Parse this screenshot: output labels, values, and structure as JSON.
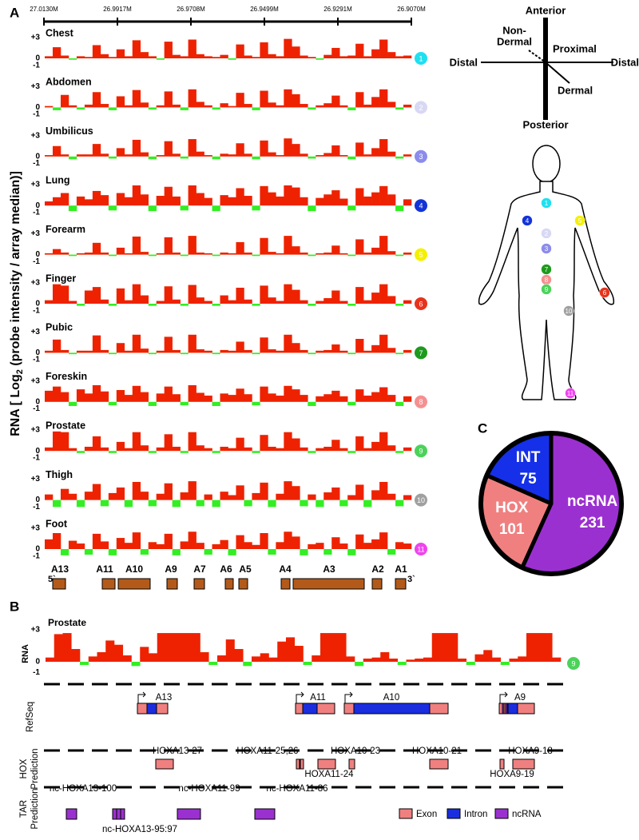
{
  "panel_labels": [
    "A",
    "B",
    "C"
  ],
  "panel_a": {
    "y_axis_label": {
      "prefix": "RNA [ Log",
      "sub": "2",
      "suffix": " (probe intensity / array median)]"
    },
    "coordinates": [
      "27.0130M",
      "26.9917M",
      "26.9708M",
      "26.9499M",
      "26.9291M",
      "26.9070M"
    ],
    "yticks": [
      {
        "value": 3,
        "label": "+3"
      },
      0,
      -1
    ],
    "tracks": [
      {
        "name": "Chest",
        "number": "1",
        "color": "#1ee0f0",
        "values": [
          0.3,
          1.6,
          0.4,
          -0.2,
          0.3,
          0.2,
          1.9,
          0.6,
          0.2,
          1.3,
          0.3,
          2.6,
          0.9,
          0.3,
          -0.2,
          2.4,
          0.5,
          0.3,
          2.7,
          0.6,
          0.3,
          0.2,
          0.5,
          -0.2,
          2.0,
          0.4,
          0.2,
          2.3,
          0.6,
          0.3,
          2.8,
          1.7,
          0.4,
          0.2,
          -0.2,
          0.5,
          1.5,
          0.3,
          0.4,
          2.1,
          0.3,
          1.3,
          2.7,
          0.9,
          0.3,
          0.4
        ]
      },
      {
        "name": "Abdomen",
        "number": "2",
        "color": "#d8d8f4",
        "values": [
          0.2,
          -0.4,
          1.8,
          0.3,
          -0.3,
          0.4,
          2.2,
          0.5,
          -0.4,
          1.6,
          0.3,
          2.5,
          0.7,
          -0.3,
          0.3,
          2.3,
          0.4,
          -0.4,
          2.6,
          0.8,
          0.3,
          -0.3,
          0.6,
          0.2,
          2.1,
          0.5,
          -0.4,
          2.4,
          0.7,
          0.3,
          2.6,
          1.9,
          0.5,
          -0.3,
          0.3,
          0.6,
          1.7,
          0.3,
          -0.4,
          2.2,
          0.4,
          1.5,
          2.6,
          0.8,
          -0.3,
          0.4
        ]
      },
      {
        "name": "Umbilicus",
        "number": "3",
        "color": "#8c8cec",
        "values": [
          0.2,
          1.5,
          0.3,
          -0.4,
          0.3,
          0.3,
          1.8,
          0.4,
          -0.3,
          1.2,
          0.3,
          2.4,
          0.6,
          -0.4,
          0.2,
          2.2,
          0.4,
          -0.3,
          2.5,
          0.7,
          0.2,
          -0.4,
          0.4,
          0.3,
          1.9,
          0.4,
          -0.4,
          2.3,
          0.6,
          0.2,
          2.6,
          1.8,
          0.4,
          -0.3,
          0.2,
          0.5,
          1.6,
          0.2,
          -0.4,
          2.0,
          0.3,
          1.2,
          2.5,
          0.7,
          -0.3,
          0.3
        ]
      },
      {
        "name": "Lung",
        "number": "4",
        "color": "#1433d8",
        "values": [
          0.6,
          1.2,
          1.8,
          -0.8,
          1.3,
          0.9,
          2.1,
          1.5,
          -0.7,
          1.8,
          1.2,
          2.9,
          1.6,
          -0.8,
          1.4,
          2.7,
          1.3,
          -0.7,
          2.9,
          1.8,
          1.1,
          -0.8,
          1.5,
          1.2,
          2.5,
          1.4,
          -0.7,
          2.8,
          1.9,
          1.3,
          2.9,
          2.6,
          1.2,
          -0.8,
          1.1,
          1.6,
          2.2,
          1.0,
          -0.7,
          2.5,
          1.3,
          1.9,
          2.8,
          1.6,
          -0.8,
          0.9
        ]
      },
      {
        "name": "Forearm",
        "number": "5",
        "color": "#f5f000",
        "values": [
          0.2,
          0.8,
          0.3,
          -0.2,
          0.2,
          0.3,
          1.7,
          0.3,
          -0.2,
          1.0,
          0.2,
          2.6,
          0.4,
          -0.2,
          0.2,
          2.5,
          0.3,
          -0.2,
          2.7,
          0.3,
          0.2,
          -0.2,
          0.3,
          0.2,
          1.8,
          0.3,
          -0.2,
          2.4,
          0.4,
          0.2,
          2.7,
          1.2,
          0.3,
          -0.2,
          0.2,
          0.3,
          1.3,
          0.2,
          -0.2,
          2.2,
          0.3,
          1.0,
          2.7,
          0.5,
          -0.2,
          0.3
        ]
      },
      {
        "name": "Finger",
        "number": "6",
        "color": "#e8331c",
        "values": [
          0.5,
          2.8,
          2.6,
          0.4,
          -0.3,
          1.9,
          2.4,
          0.6,
          -0.3,
          2.2,
          0.5,
          2.8,
          1.2,
          -0.3,
          0.4,
          2.5,
          0.6,
          -0.3,
          2.7,
          0.9,
          0.4,
          -0.3,
          1.2,
          0.5,
          2.3,
          0.6,
          -0.3,
          2.6,
          0.9,
          0.4,
          2.8,
          2.0,
          0.5,
          -0.3,
          0.4,
          0.8,
          1.9,
          0.4,
          -0.3,
          2.4,
          0.5,
          1.6,
          2.8,
          1.1,
          -0.3,
          0.5
        ]
      },
      {
        "name": "Pubic",
        "number": "7",
        "color": "#1e9a1e",
        "values": [
          0.3,
          1.9,
          0.4,
          -0.2,
          0.3,
          0.3,
          2.5,
          0.4,
          -0.2,
          1.4,
          0.3,
          2.6,
          0.6,
          -0.2,
          0.3,
          2.3,
          0.4,
          -0.2,
          2.6,
          0.5,
          0.3,
          -0.2,
          0.4,
          0.3,
          1.6,
          0.4,
          -0.2,
          2.2,
          0.5,
          0.3,
          2.6,
          1.4,
          0.4,
          -0.2,
          0.3,
          0.4,
          1.2,
          0.3,
          -0.2,
          2.0,
          0.3,
          1.1,
          2.6,
          0.7,
          -0.2,
          0.4
        ]
      },
      {
        "name": "Foreskin",
        "number": "8",
        "color": "#f59090",
        "values": [
          1.6,
          2.2,
          1.4,
          -0.6,
          1.8,
          1.2,
          2.4,
          1.5,
          -0.5,
          1.7,
          1.0,
          2.3,
          1.4,
          -0.6,
          1.2,
          2.2,
          1.1,
          -0.5,
          2.4,
          1.3,
          0.9,
          -0.6,
          1.2,
          1.0,
          1.9,
          1.1,
          -0.5,
          2.2,
          1.2,
          0.9,
          2.3,
          1.8,
          1.0,
          -0.6,
          0.8,
          1.1,
          1.6,
          0.8,
          -0.5,
          1.8,
          0.9,
          1.4,
          2.1,
          1.0,
          -0.6,
          0.8
        ]
      },
      {
        "name": "Prostate",
        "number": "9",
        "color": "#4cd25a",
        "values": [
          0.5,
          2.8,
          2.7,
          0.4,
          -0.3,
          0.6,
          2.1,
          0.5,
          -0.3,
          1.3,
          0.4,
          2.7,
          0.8,
          -0.3,
          0.5,
          2.4,
          0.6,
          -0.3,
          2.7,
          0.8,
          0.4,
          -0.3,
          0.6,
          0.4,
          1.9,
          0.5,
          -0.3,
          2.3,
          0.6,
          0.4,
          2.7,
          1.8,
          0.5,
          -0.3,
          0.4,
          0.6,
          1.6,
          0.4,
          -0.3,
          2.1,
          0.4,
          1.3,
          2.7,
          0.8,
          -0.3,
          0.5
        ]
      },
      {
        "name": "Thigh",
        "number": "10",
        "color": "#a0a0a0",
        "values": [
          0.8,
          -1.0,
          1.6,
          0.9,
          -1.0,
          1.2,
          2.3,
          -0.9,
          1.0,
          1.8,
          -1.0,
          2.6,
          1.2,
          -0.9,
          0.9,
          2.4,
          -1.0,
          1.1,
          2.7,
          -0.9,
          0.8,
          -1.0,
          1.2,
          0.7,
          2.1,
          -0.9,
          1.0,
          2.5,
          -1.0,
          0.9,
          2.7,
          2.0,
          -0.9,
          0.8,
          -1.0,
          1.1,
          1.8,
          -0.9,
          0.7,
          2.2,
          -1.0,
          1.4,
          2.6,
          0.9,
          -0.9,
          0.7
        ]
      },
      {
        "name": "Foot",
        "number": "11",
        "color": "#ee44ee",
        "values": [
          1.4,
          2.3,
          -0.9,
          1.2,
          0.8,
          -0.8,
          2.2,
          1.1,
          -0.9,
          1.6,
          0.9,
          2.4,
          -0.8,
          1.0,
          0.7,
          2.2,
          -0.9,
          1.1,
          2.5,
          0.9,
          -0.8,
          0.7,
          1.3,
          -0.9,
          2.0,
          1.0,
          0.6,
          2.3,
          -0.8,
          1.0,
          2.5,
          1.8,
          -0.9,
          0.7,
          0.9,
          -0.8,
          1.7,
          0.8,
          -0.9,
          2.1,
          0.9,
          1.4,
          2.4,
          -0.8,
          1.0,
          0.8
        ]
      }
    ],
    "genes": [
      "A13",
      "A11",
      "A10",
      "A9",
      "A7",
      "A6",
      "A5",
      "A4",
      "A3",
      "A2",
      "A1"
    ],
    "five_prime": "5`",
    "three_prime": "3`"
  },
  "orientation": {
    "anterior": "Anterior",
    "posterior": "Posterior",
    "distal_left": "Distal",
    "distal_right": "Distal",
    "proximal": "Proximal",
    "dermal": "Dermal",
    "non_dermal": [
      "Non-",
      "Dermal"
    ]
  },
  "panel_c": {
    "type": "pie",
    "slices": [
      {
        "name": "ncRNA",
        "value": 231,
        "color": "#9b30d0"
      },
      {
        "name": "HOX",
        "value": 101,
        "color": "#f08080"
      },
      {
        "name": "INT",
        "value": 75,
        "color": "#1530e8"
      }
    ]
  },
  "panel_b": {
    "track_name": "Prostate",
    "axis_label": "RNA",
    "yticks": [
      {
        "value": 3,
        "label": "+3"
      },
      0,
      -1
    ],
    "number": "9",
    "color": "#4cd25a",
    "values": [
      0.4,
      2.6,
      2.7,
      1.2,
      -0.3,
      0.5,
      0.9,
      2.0,
      1.6,
      0.6,
      -0.4,
      1.4,
      0.8,
      2.7,
      2.7,
      2.7,
      2.7,
      2.7,
      0.9,
      -0.3,
      0.6,
      2.1,
      1.2,
      -0.4,
      0.5,
      0.8,
      0.4,
      1.9,
      2.3,
      1.5,
      -0.3,
      0.6,
      2.7,
      2.7,
      2.7,
      0.5,
      -0.4,
      0.3,
      0.4,
      0.9,
      0.3,
      -0.3,
      0.2,
      0.3,
      0.4,
      2.7,
      2.7,
      2.7,
      0.3,
      -0.3,
      0.7,
      1.1,
      0.4,
      -0.3,
      0.3,
      0.5,
      2.7,
      2.7,
      2.7,
      0.4
    ],
    "refseq_label": "RefSeq",
    "genes": [
      "A13",
      "A11",
      "A10",
      "A9"
    ],
    "hox_label": [
      "HOX",
      "Prediction"
    ],
    "hox_predictions": [
      "HOXA13-27",
      "HOXA11-25,26",
      "HOXA11-24",
      "HOXA10-23",
      "HOXA10-21",
      "HOXA9-18",
      "HOXA9-19"
    ],
    "tar_label": [
      "TAR",
      "Prediction"
    ],
    "tar_predictions": [
      "nc-HOXA13-100",
      "nc-HOXA13-95:97",
      "nc-HOXA11-93",
      "nc-HOXA11-86"
    ],
    "legend": [
      {
        "name": "Exon",
        "color": "#f08080"
      },
      {
        "name": "Intron",
        "color": "#1a2ee0"
      },
      {
        "name": "ncRNA",
        "color": "#9b30d0"
      }
    ]
  }
}
